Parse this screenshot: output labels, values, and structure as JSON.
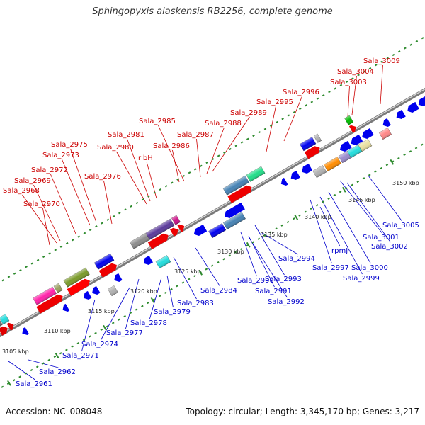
{
  "title": "Sphingopyxis alaskensis RB2256, complete genome",
  "footer": {
    "accession": "Accession: NC_008048",
    "summary": "Topology: circular; Length: 3,345,170 bp; Genes: 3,217"
  },
  "colors": {
    "forward_label": "#cc0000",
    "reverse_label": "#0000cc",
    "backbone": "#8a8a8a",
    "tick": "#2e8b2e"
  },
  "tick_labels": [
    "3105 kbp",
    "3110 kbp",
    "3115 kbp",
    "3120 kbp",
    "3125 kbp",
    "3130 kbp",
    "3135 kbp",
    "3140 kbp",
    "3145 kbp",
    "3150 kbp"
  ],
  "forward_genes": [
    "Sala_3009",
    "Sala_3004",
    "Sala_3003",
    "Sala_2996",
    "Sala_2995",
    "Sala_2989",
    "Sala_2988",
    "Sala_2987",
    "Sala_2985",
    "Sala_2986",
    "Sala_2981",
    "Sala_2980",
    "ribH",
    "Sala_2975",
    "Sala_2973",
    "Sala_2976",
    "Sala_2972",
    "Sala_2969",
    "Sala_2968",
    "Sala_2970"
  ],
  "reverse_genes": [
    "Sala_3005",
    "Sala_3001",
    "Sala_3002",
    "Sala_3000",
    "Sala_2999",
    "Sala_2997",
    "rpmJ",
    "Sala_2994",
    "Sala_2993",
    "Sala_2990",
    "Sala_2991",
    "Sala_2992",
    "Sala_2984",
    "Sala_2983",
    "Sala_2979",
    "Sala_2978",
    "Sala_2977",
    "Sala_2974",
    "Sala_2971",
    "Sala_2962",
    "Sala_2961"
  ]
}
